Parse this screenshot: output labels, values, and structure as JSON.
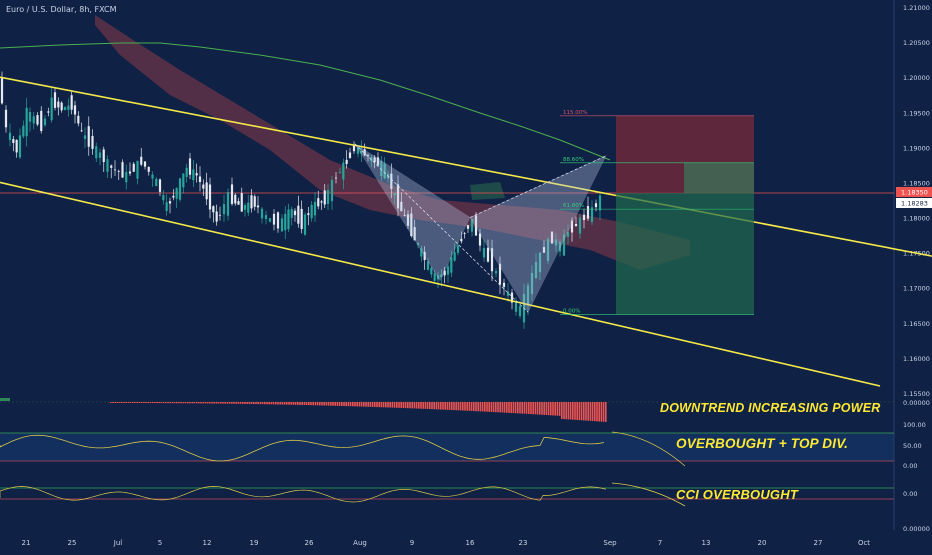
{
  "header": {
    "symbol_title": "Euro / U.S. Dollar, 8h, FXCM"
  },
  "colors": {
    "background": "#0f2145",
    "bullish": "#26a69a",
    "bearish": "#e6e9ef",
    "channel": "#f5e94a",
    "ma": "#4caf50",
    "cloud": "#8b3a48",
    "price_line": "#ef5350",
    "annotation": "#ffe933",
    "fib": "#34d17a"
  },
  "chart_data": {
    "type": "candlestick",
    "title": "Euro / U.S. Dollar, 8h, FXCM",
    "y_axis": {
      "ylim": [
        1.1535,
        1.2105
      ],
      "ticks": [
        "1.21000",
        "1.20500",
        "1.20000",
        "1.19500",
        "1.19000",
        "1.18500",
        "1.18000",
        "1.17500",
        "1.17000",
        "1.16500",
        "1.16000",
        "1.15500"
      ]
    },
    "x_axis": {
      "tick_labels": [
        "21",
        "25",
        "Jul",
        "5",
        "12",
        "19",
        "26",
        "Aug",
        "9",
        "16",
        "23",
        "Sep",
        "7",
        "13",
        "20",
        "27",
        "Oct"
      ]
    },
    "price_labels": {
      "current_red": "1.18350",
      "current_white": "1.18283"
    },
    "channel_lines": [
      {
        "name": "upper",
        "from": [
          0,
          1.2
        ],
        "to": [
          932,
          1.1745
        ]
      },
      {
        "name": "lower",
        "from": [
          0,
          1.185
        ],
        "to": [
          880,
          1.156
        ]
      }
    ],
    "harmonic_pattern": {
      "type": "bat",
      "points": [
        [
          1.1905,
          "X"
        ],
        [
          1.171,
          "A"
        ],
        [
          1.18,
          "B"
        ],
        [
          1.1665,
          "C"
        ],
        [
          1.1888,
          "D"
        ]
      ]
    },
    "fib_levels": [
      {
        "label": "115.00%",
        "value": 1.1945
      },
      {
        "label": "88.60%",
        "value": 1.1878
      },
      {
        "label": "61.80%",
        "value": 1.1812
      },
      {
        "label": "0.00%",
        "value": 1.1662
      }
    ],
    "position": {
      "stop_zone": [
        1.1835,
        1.1945
      ],
      "target_zone": [
        1.1662,
        1.1835
      ]
    },
    "panes": [
      {
        "name": "histogram",
        "tick_labels": [
          "0.00000"
        ]
      },
      {
        "name": "oscillator",
        "tick_labels": [
          "100.00",
          "50.00",
          "0.00"
        ]
      },
      {
        "name": "cci",
        "tick_labels": [
          "0.00",
          "0.00000"
        ]
      }
    ]
  },
  "annotations": {
    "downtrend": "DOWNTREND INCREASING POWER",
    "overbought": "OVERBOUGHT + TOP DIV.",
    "cci": "CCI OVERBOUGHT"
  }
}
